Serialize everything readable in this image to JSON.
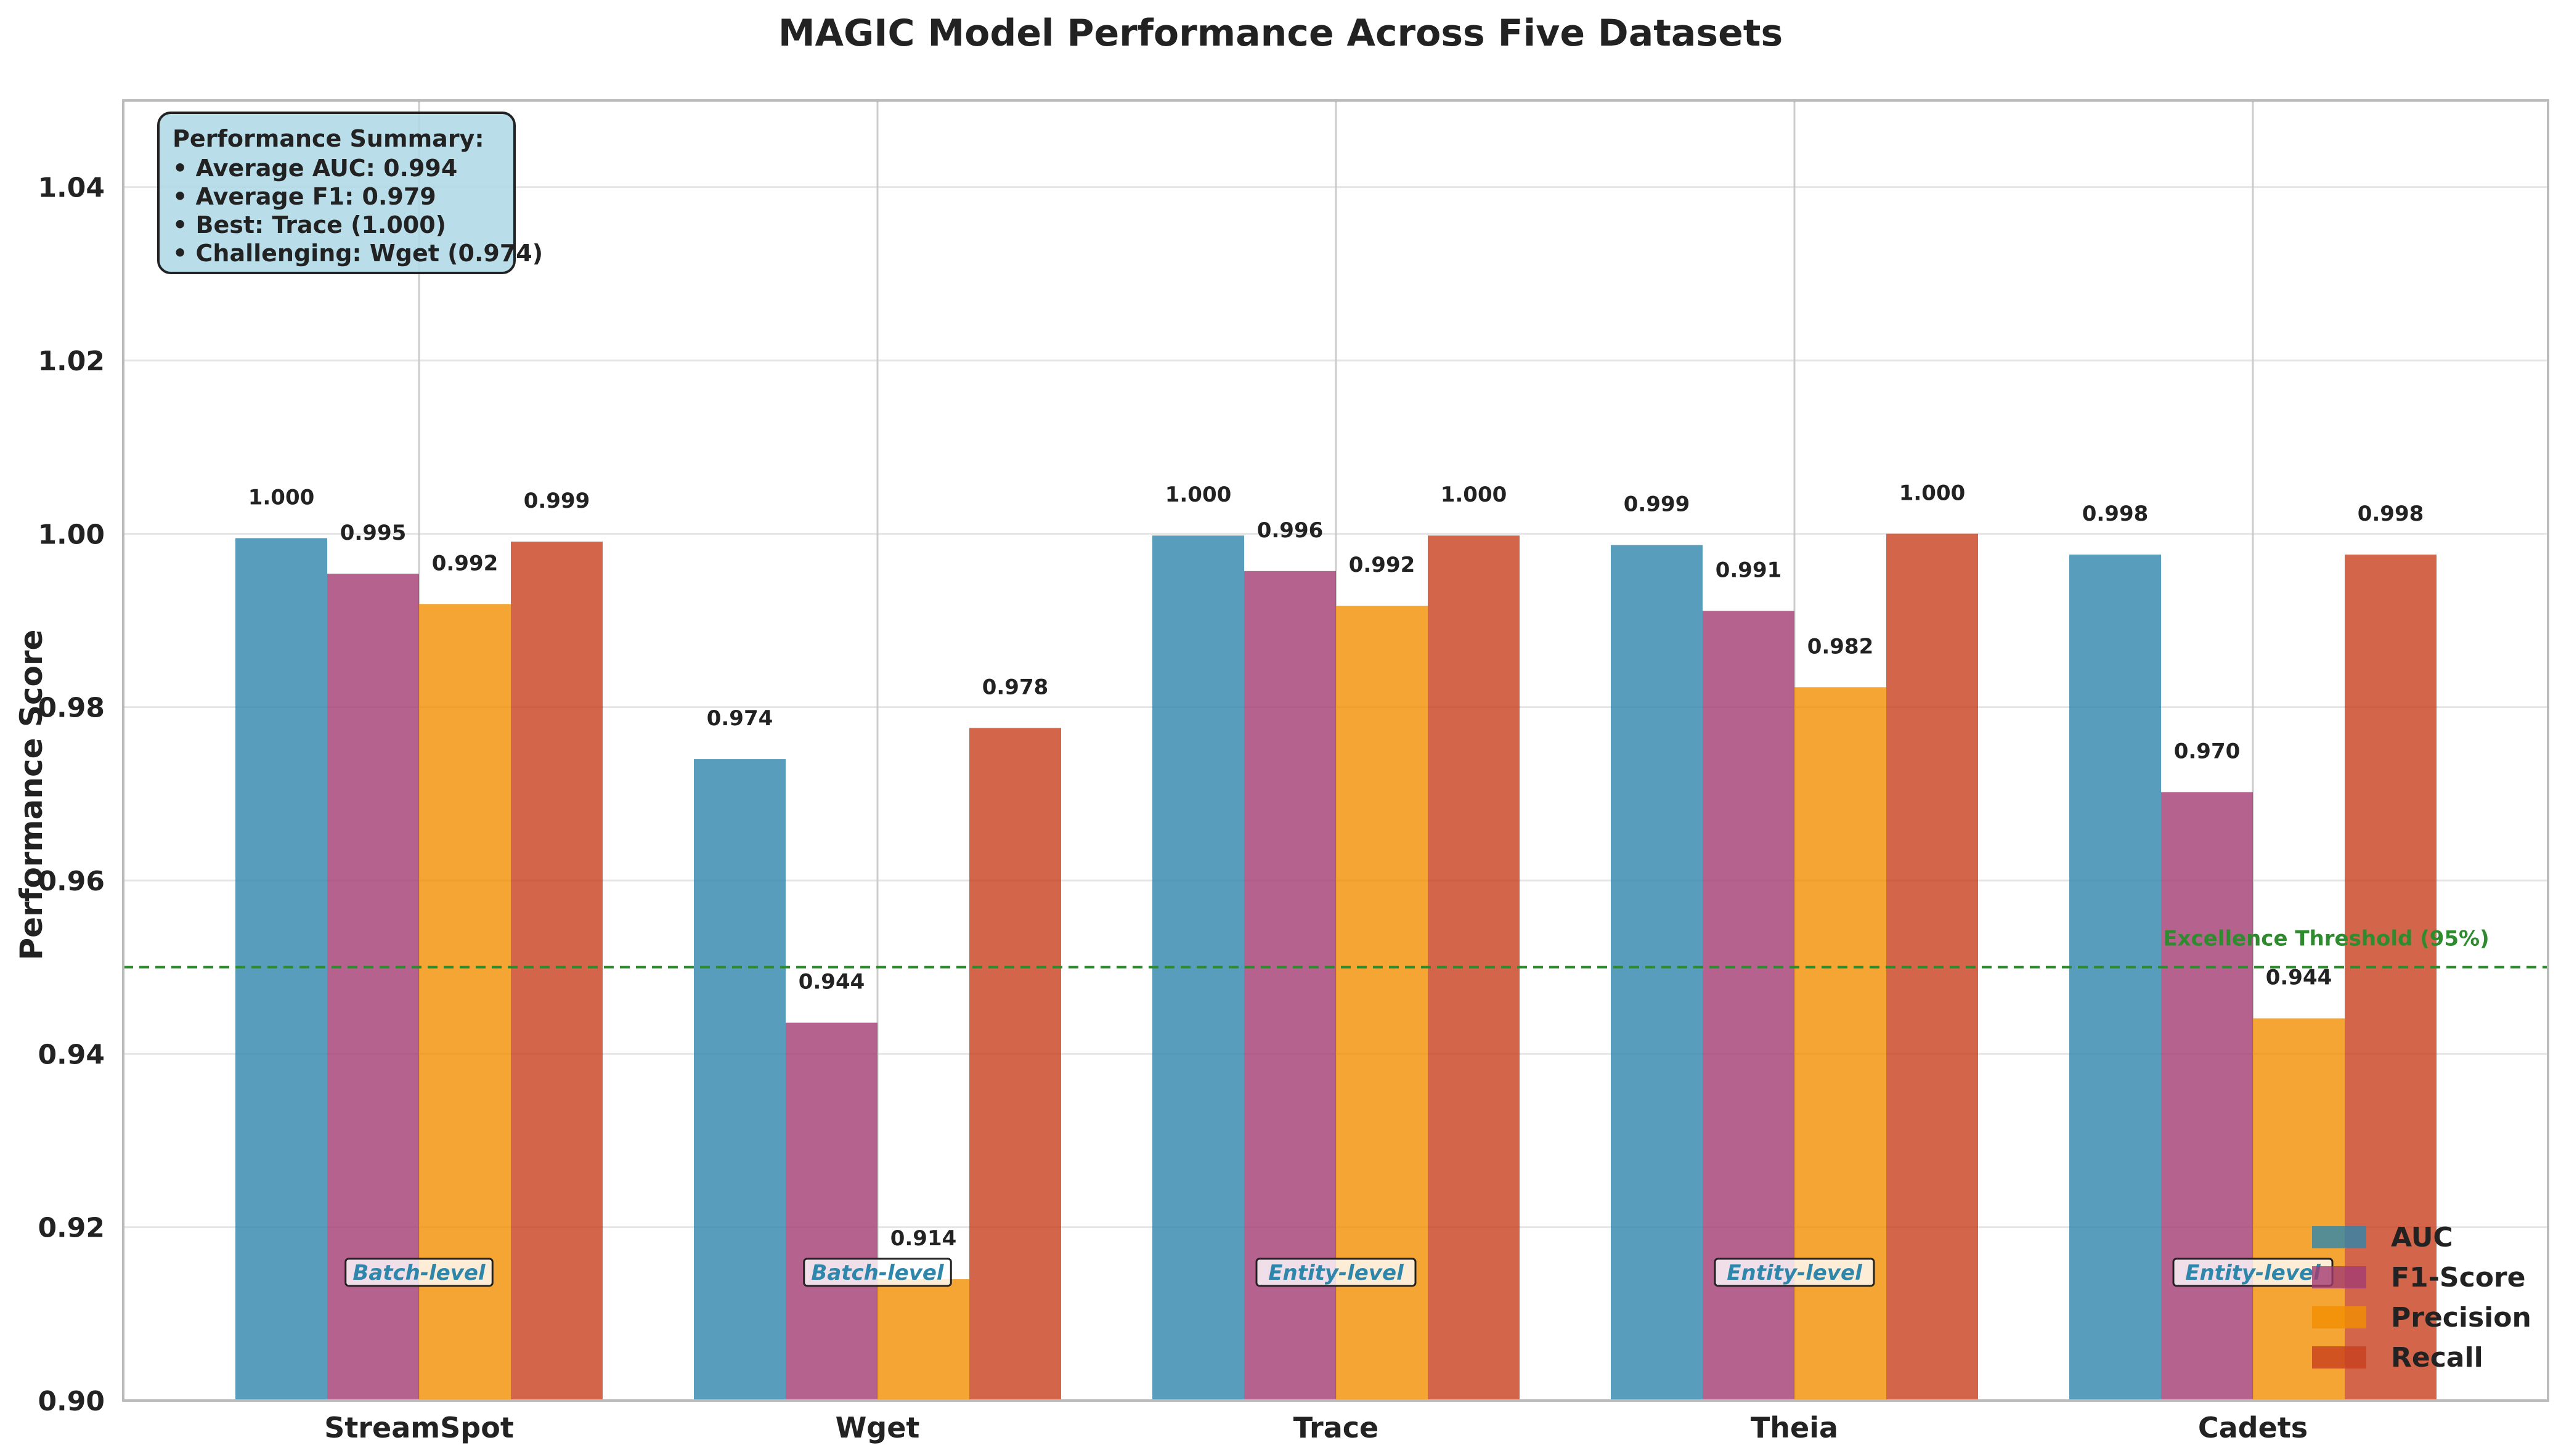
{
  "chart_data": {
    "type": "bar",
    "title": "MAGIC Model Performance Across Five Datasets",
    "xlabel": "",
    "ylabel": "Performance Score",
    "ylim": [
      0.9,
      1.05
    ],
    "yticks": [
      "0.90",
      "0.92",
      "0.94",
      "0.96",
      "0.98",
      "1.00",
      "1.02",
      "1.04"
    ],
    "grid": true,
    "legend_position": "bottom-right",
    "categories": [
      "StreamSpot",
      "Wget",
      "Trace",
      "Theia",
      "Cadets"
    ],
    "series": [
      {
        "name": "AUC",
        "color": "#2e86ab",
        "values": [
          0.9995,
          0.974,
          0.9998,
          0.9987,
          0.9976
        ],
        "labels": [
          "1.000",
          "0.974",
          "1.000",
          "0.999",
          "0.998"
        ]
      },
      {
        "name": "F1-Score",
        "color": "#a23b72",
        "values": [
          0.9954,
          0.9436,
          0.9957,
          0.9911,
          0.9702
        ],
        "labels": [
          "0.995",
          "0.944",
          "0.996",
          "0.991",
          "0.970"
        ]
      },
      {
        "name": "Precision",
        "color": "#f18f01",
        "values": [
          0.9919,
          0.914,
          0.9917,
          0.9823,
          0.9441
        ],
        "labels": [
          "0.992",
          "0.914",
          "0.992",
          "0.982",
          "0.944"
        ]
      },
      {
        "name": "Recall",
        "color": "#c73e1d",
        "values": [
          0.9991,
          0.9776,
          0.9998,
          1.0,
          0.9976
        ],
        "labels": [
          "0.999",
          "0.978",
          "1.000",
          "1.000",
          "0.998"
        ]
      }
    ],
    "detection_levels": [
      "Batch-level",
      "Batch-level",
      "Entity-level",
      "Entity-level",
      "Entity-level"
    ],
    "level_color": "#2e86ab",
    "threshold": {
      "value": 0.95,
      "label": "Excellence Threshold (95%)",
      "color": "#2e8b2e"
    },
    "summary": {
      "title": "Performance Summary:",
      "lines": [
        "• Average AUC: 0.994",
        "• Average F1: 0.979",
        "• Best: Trace (1.000)",
        "• Challenging: Wget (0.974)"
      ]
    }
  }
}
